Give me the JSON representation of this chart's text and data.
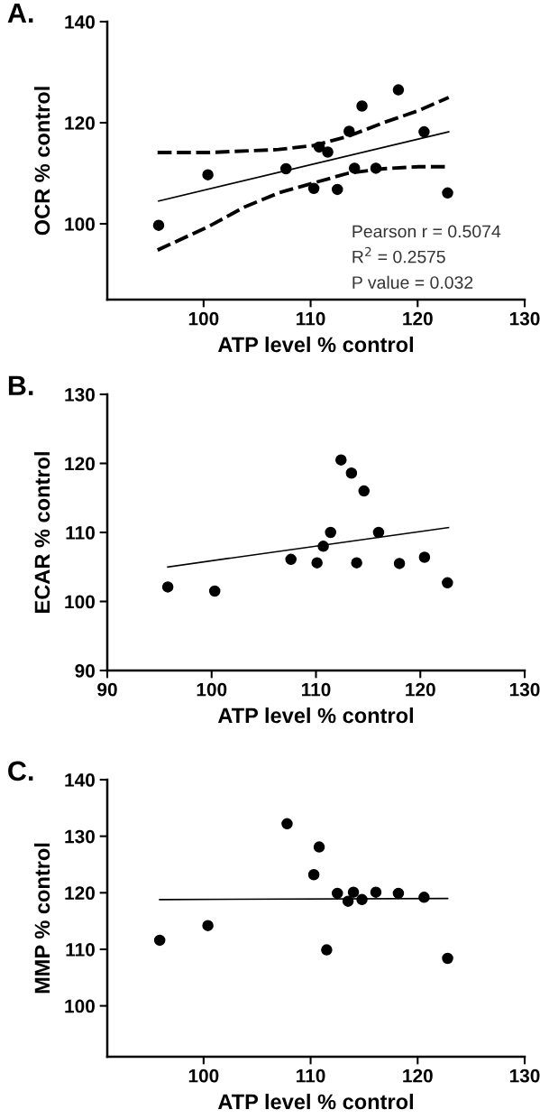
{
  "chart_data": [
    {
      "type": "scatter",
      "title": "A.",
      "xlabel": "ATP level % control",
      "ylabel": "OCR % control",
      "xlim": [
        91,
        130
      ],
      "xticks": [
        100,
        110,
        120,
        130
      ],
      "ylim": [
        85,
        140
      ],
      "yticks": [
        100,
        120,
        140
      ],
      "grid": false,
      "legend": false,
      "marker": "none",
      "annotations": [
        "Pearson r = 0.5074",
        "R$^{2}$ = 0.2575",
        "P value = 0.032"
      ],
      "series": [
        {
          "marker": "circle",
          "color": "#000000",
          "x": [
            95.8,
            100.4,
            107.7,
            110.3,
            110.8,
            111.6,
            112.5,
            113.6,
            114.1,
            114.8,
            116.1,
            118.2,
            120.6,
            122.8
          ],
          "values": [
            99.7,
            109.7,
            110.9,
            107.0,
            115.2,
            114.2,
            106.8,
            118.3,
            111.0,
            123.3,
            111.0,
            126.5,
            118.2,
            106.1
          ]
        },
        {
          "type": "line",
          "line_style": "solid",
          "color": "#000000",
          "x": [
            95.8,
            122.9
          ],
          "values": [
            104.5,
            118.2
          ]
        },
        {
          "type": "line",
          "line_style": "dashed",
          "color": "#000000",
          "x": [
            95.7,
            100.5,
            107.0,
            110.3,
            113.5,
            116.8,
            120.1,
            122.9
          ],
          "values": [
            114.1,
            114.1,
            114.7,
            115.5,
            117.3,
            120.0,
            122.4,
            125.0
          ]
        },
        {
          "type": "line",
          "line_style": "dashed",
          "color": "#000000",
          "x": [
            95.7,
            100.5,
            103.8,
            107.0,
            110.3,
            113.5,
            116.8,
            120.1,
            122.9
          ],
          "values": [
            94.8,
            99.5,
            103.3,
            106.1,
            108.1,
            110.0,
            110.9,
            111.3,
            111.3
          ]
        }
      ]
    },
    {
      "type": "scatter",
      "title": "B.",
      "xlabel": "ATP level % control",
      "ylabel": "ECAR % control",
      "xlim": [
        90,
        130
      ],
      "xticks": [
        90,
        100,
        110,
        120,
        130
      ],
      "ylim": [
        90,
        130
      ],
      "yticks": [
        90,
        100,
        110,
        120,
        130
      ],
      "grid": false,
      "legend": false,
      "marker": "none",
      "series": [
        {
          "marker": "circle",
          "color": "#000000",
          "x": [
            95.8,
            100.3,
            107.6,
            110.1,
            110.7,
            111.4,
            112.4,
            113.4,
            113.9,
            114.6,
            116.0,
            118.0,
            120.4,
            122.6
          ],
          "values": [
            102.1,
            101.5,
            106.1,
            105.6,
            108.0,
            110.0,
            120.5,
            118.6,
            105.6,
            116.0,
            110.0,
            105.5,
            106.4,
            102.7
          ]
        },
        {
          "type": "line",
          "line_style": "solid",
          "color": "#000000",
          "x": [
            95.8,
            122.7
          ],
          "values": [
            105.0,
            110.7
          ]
        }
      ]
    },
    {
      "type": "scatter",
      "title": "C.",
      "xlabel": "ATP level % control",
      "ylabel": "MMP % control",
      "xlim": [
        91,
        130
      ],
      "xticks": [
        100,
        110,
        120,
        130
      ],
      "ylim": [
        91,
        140
      ],
      "yticks": [
        100,
        110,
        120,
        130,
        140
      ],
      "grid": false,
      "legend": false,
      "marker": "none",
      "series": [
        {
          "marker": "circle",
          "color": "#000000",
          "x": [
            95.9,
            100.4,
            107.8,
            110.3,
            110.8,
            111.5,
            112.5,
            113.5,
            114.0,
            114.8,
            116.1,
            118.2,
            120.6,
            122.8
          ],
          "values": [
            111.6,
            114.2,
            132.2,
            123.2,
            128.1,
            109.9,
            119.9,
            118.5,
            120.1,
            118.8,
            120.1,
            119.9,
            119.2,
            108.4
          ]
        },
        {
          "type": "line",
          "line_style": "solid",
          "color": "#000000",
          "x": [
            95.9,
            122.8
          ],
          "values": [
            118.8,
            119.0
          ]
        }
      ]
    }
  ]
}
